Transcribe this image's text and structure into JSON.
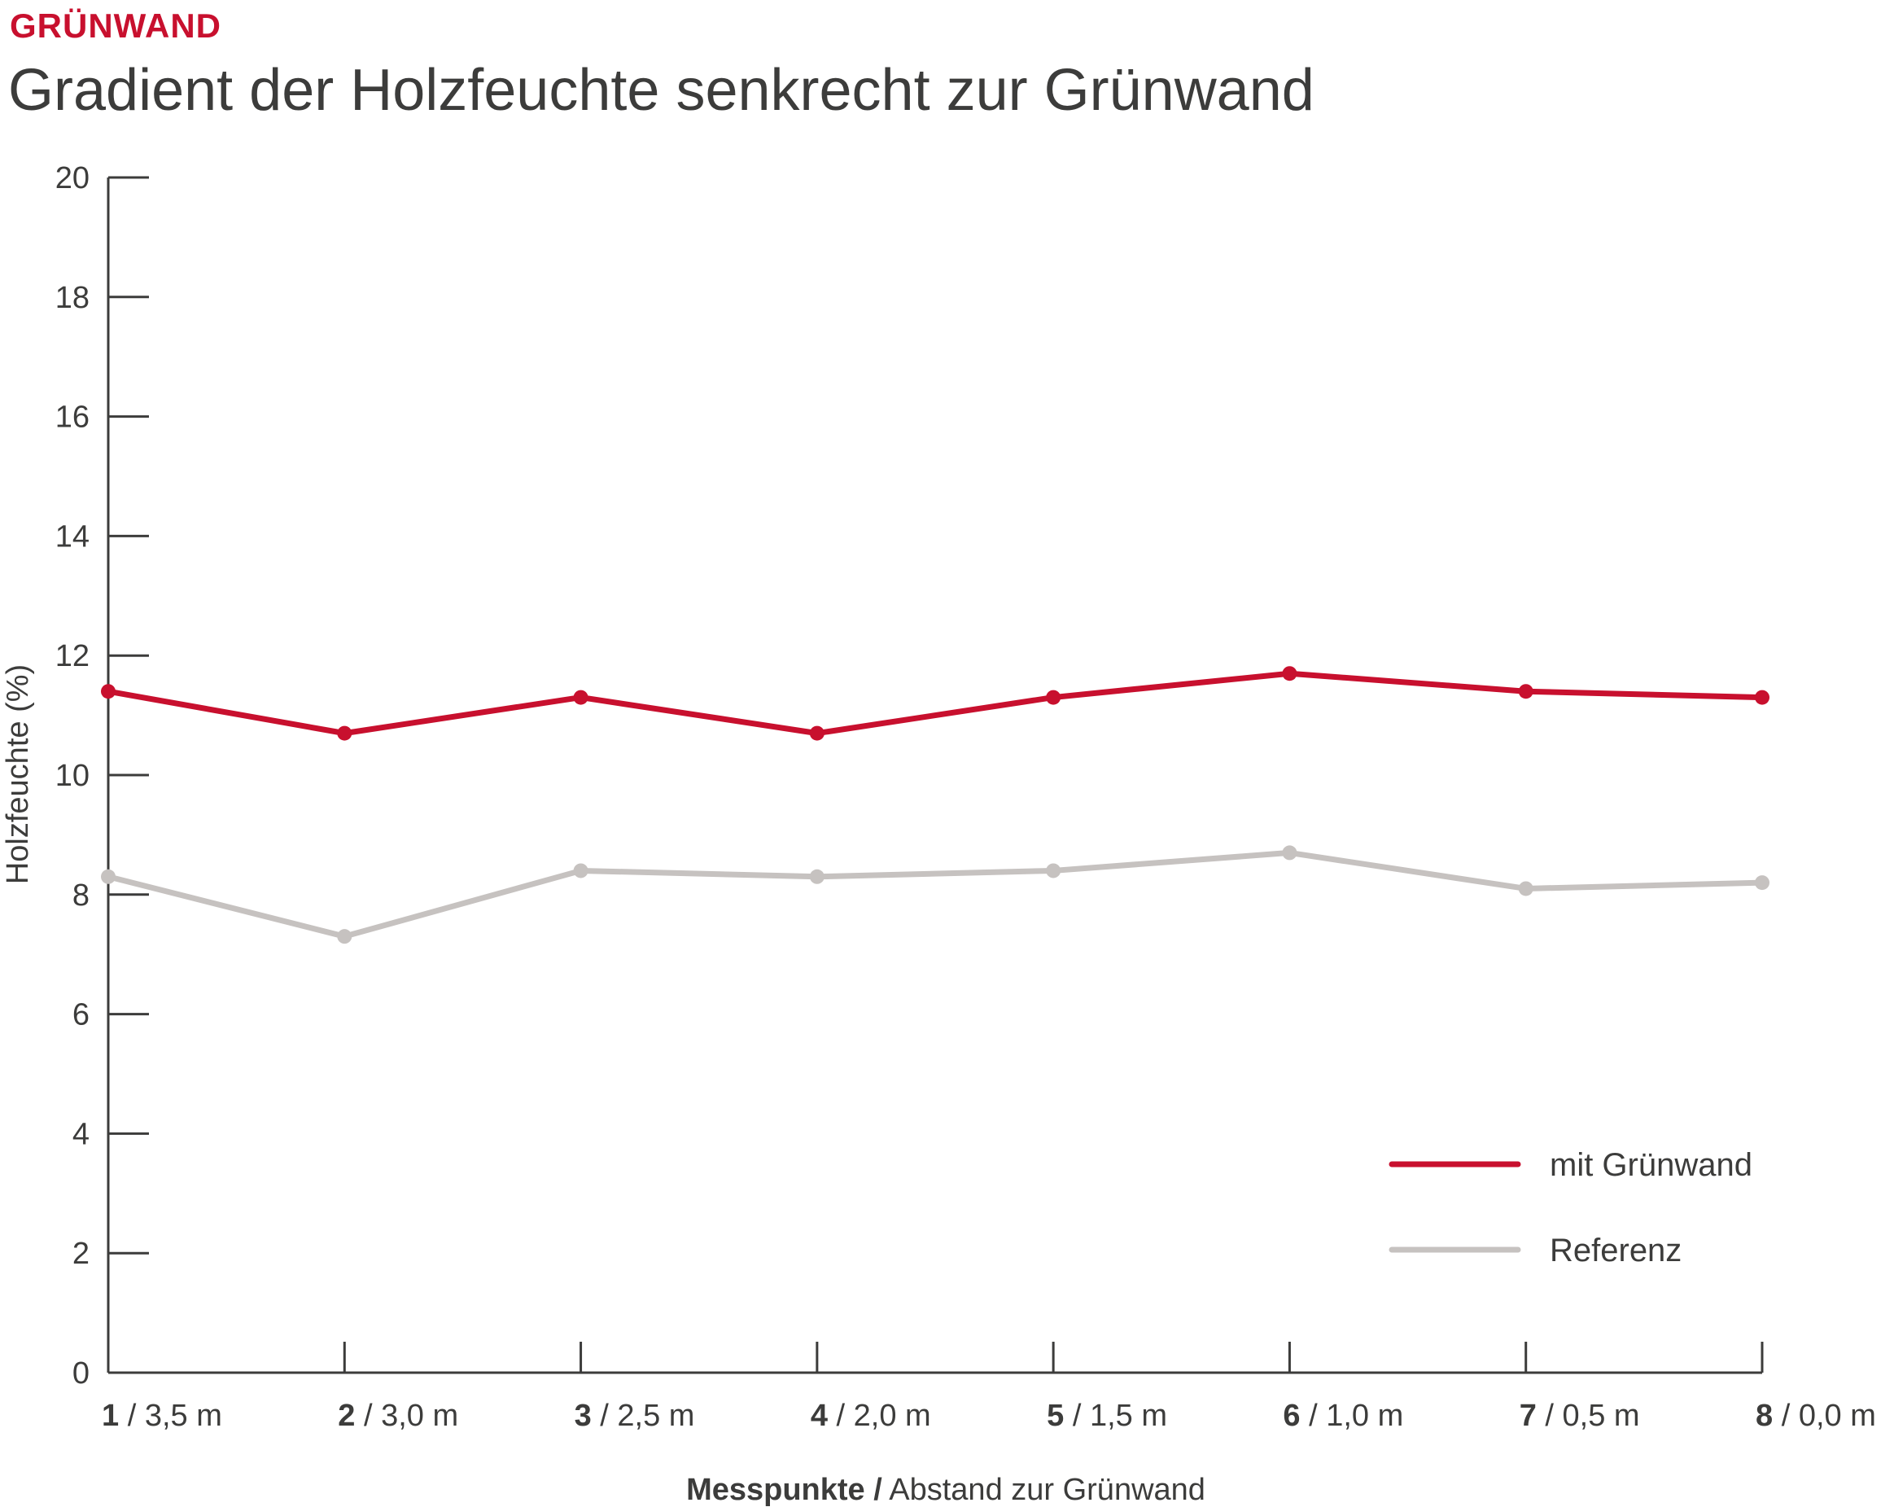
{
  "header": {
    "kicker": "GRÜNWAND",
    "title": "Gradient der Holzfeuchte senkrecht zur Grünwand"
  },
  "colors": {
    "accent": "#c8102e",
    "reference": "#c6c2c0",
    "axis": "#3c3c3b"
  },
  "chart_data": {
    "type": "line",
    "title": "Gradient der Holzfeuchte senkrecht zur Grünwand",
    "ylabel": "Holzfeuchte (%)",
    "xlabel_bold": "Messpunkte /",
    "xlabel_rest": " Abstand zur Grünwand",
    "ylim": [
      0,
      20
    ],
    "yticks": [
      0,
      2,
      4,
      6,
      8,
      10,
      12,
      14,
      16,
      18,
      20
    ],
    "categories": [
      {
        "num": "1",
        "dist": " / 3,5 m"
      },
      {
        "num": "2",
        "dist": " / 3,0 m"
      },
      {
        "num": "3",
        "dist": " / 2,5 m"
      },
      {
        "num": "4",
        "dist": " / 2,0 m"
      },
      {
        "num": "5",
        "dist": " / 1,5 m"
      },
      {
        "num": "6",
        "dist": " / 1,0 m"
      },
      {
        "num": "7",
        "dist": " / 0,5 m"
      },
      {
        "num": "8",
        "dist": " / 0,0 m"
      }
    ],
    "series": [
      {
        "name": "mit Grünwand",
        "color": "#c8102e",
        "values": [
          11.4,
          10.7,
          11.3,
          10.7,
          11.3,
          11.7,
          11.4,
          11.3
        ]
      },
      {
        "name": "Referenz",
        "color": "#c6c2c0",
        "values": [
          8.3,
          7.3,
          8.4,
          8.3,
          8.4,
          8.7,
          8.1,
          8.2
        ]
      }
    ],
    "grid": false,
    "legend_position": "bottom-right"
  }
}
